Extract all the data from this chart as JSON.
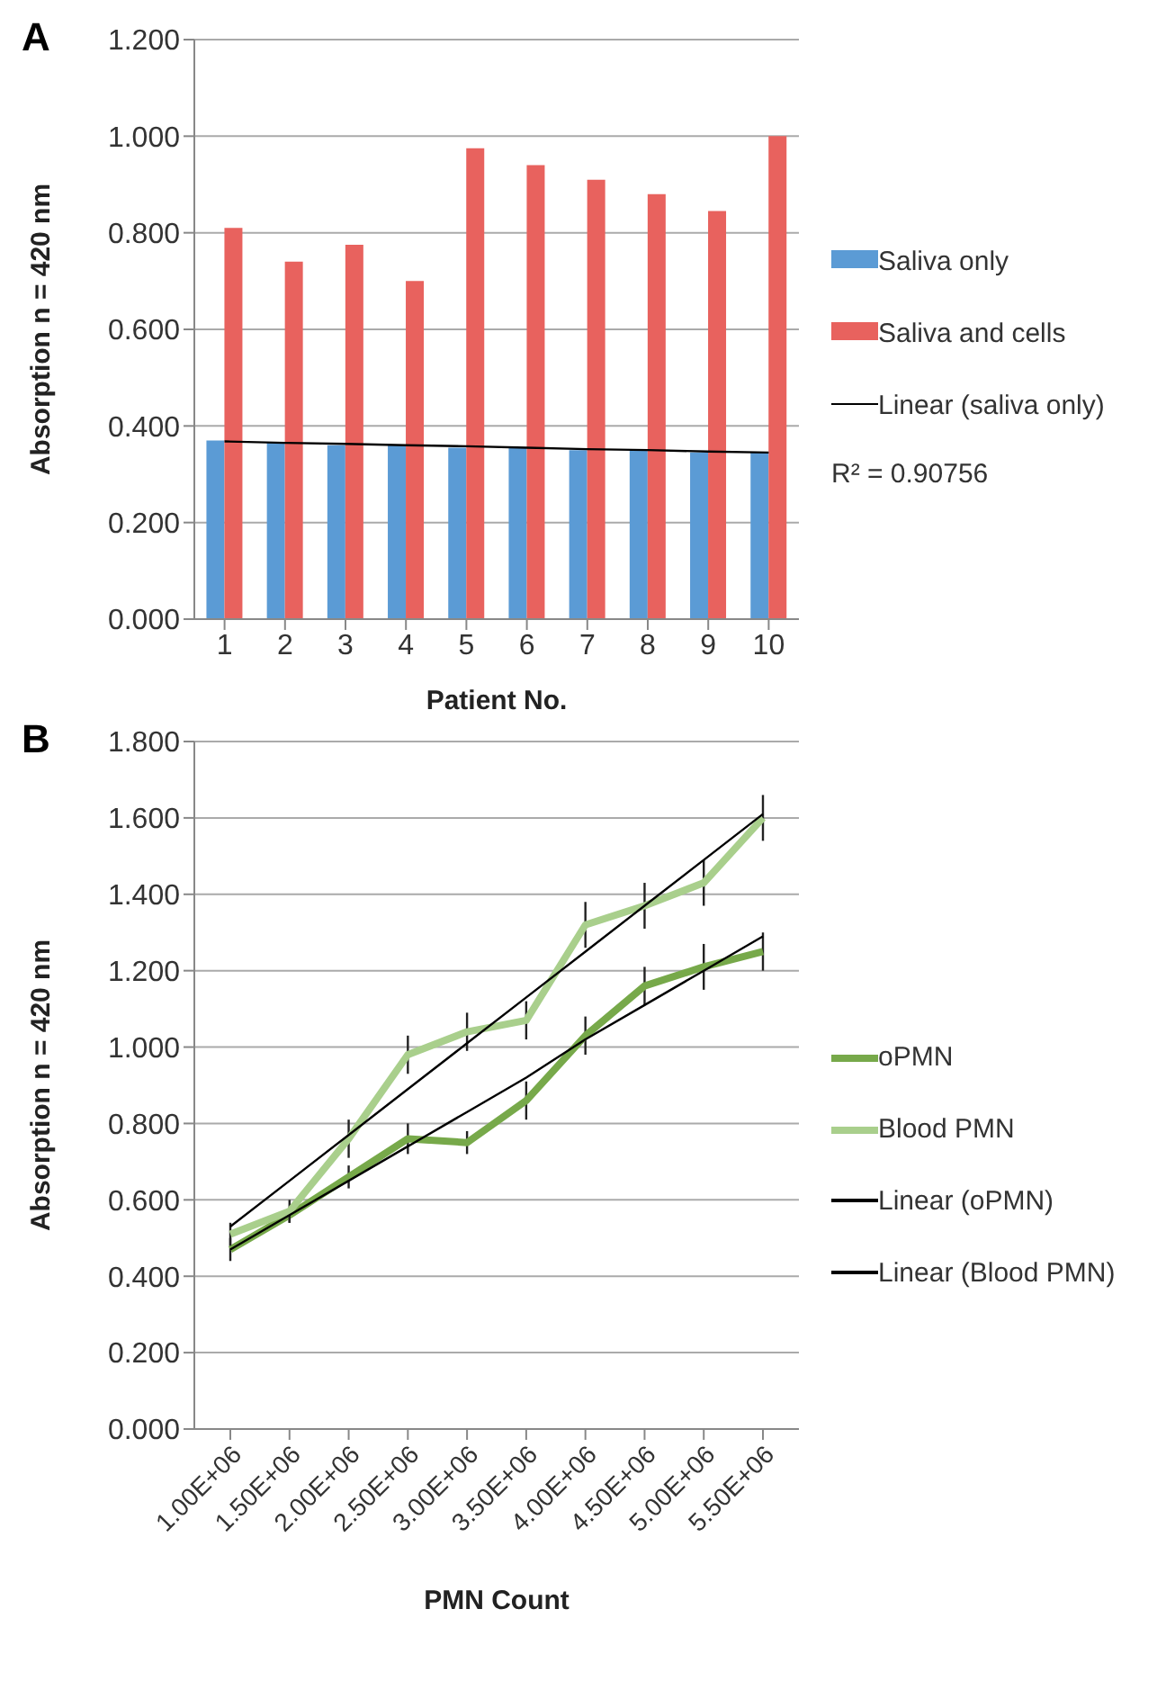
{
  "chart_data": [
    {
      "type": "bar",
      "title": "A",
      "xlabel": "Patient No.",
      "ylabel": "Absorption n = 420 nm",
      "categories": [
        "1",
        "2",
        "3",
        "4",
        "5",
        "6",
        "7",
        "8",
        "9",
        "10"
      ],
      "series": [
        {
          "name": "Saliva only",
          "color": "#5b9bd5",
          "values": [
            0.37,
            0.365,
            0.36,
            0.36,
            0.355,
            0.355,
            0.35,
            0.35,
            0.345,
            0.345
          ]
        },
        {
          "name": "Saliva and cells",
          "color": "#e8625e",
          "values": [
            0.81,
            0.74,
            0.775,
            0.7,
            0.975,
            0.94,
            0.91,
            0.88,
            0.845,
            1.0
          ]
        },
        {
          "name": "Linear (saliva only)",
          "type": "line",
          "color": "#000000",
          "values": [
            0.368,
            0.365,
            0.363,
            0.36,
            0.358,
            0.355,
            0.352,
            0.35,
            0.347,
            0.345
          ]
        }
      ],
      "ylim": [
        0,
        1.2
      ],
      "yticks": [
        {
          "value": 0,
          "label": "0.000"
        },
        {
          "value": 0.2,
          "label": "0.200"
        },
        {
          "value": 0.4,
          "label": "0.400"
        },
        {
          "value": 0.6,
          "label": "0.600"
        },
        {
          "value": 0.8,
          "label": "0.800"
        },
        {
          "value": 1,
          "label": "1.000"
        },
        {
          "value": 1.2,
          "label": "1.200"
        }
      ],
      "annotations": [
        "R² = 0.90756"
      ],
      "grid": "y",
      "legend": "right"
    },
    {
      "type": "line",
      "title": "B",
      "xlabel": "PMN Count",
      "ylabel": "Absorption n = 420 nm",
      "categories": [
        "1.00E+06",
        "1.50E+06",
        "2.00E+06",
        "2.50E+06",
        "3.00E+06",
        "3.50E+06",
        "4.00E+06",
        "4.50E+06",
        "5.00E+06",
        "5.50E+06"
      ],
      "series": [
        {
          "name": "oPMN",
          "color": "#77a94a",
          "values": [
            0.47,
            0.56,
            0.66,
            0.76,
            0.75,
            0.86,
            1.03,
            1.16,
            1.21,
            1.25
          ],
          "errors": [
            0.03,
            0.02,
            0.03,
            0.04,
            0.03,
            0.05,
            0.05,
            0.05,
            0.06,
            0.05
          ]
        },
        {
          "name": "Blood PMN",
          "color": "#a9cf8c",
          "values": [
            0.51,
            0.57,
            0.76,
            0.98,
            1.04,
            1.07,
            1.32,
            1.37,
            1.43,
            1.6
          ],
          "errors": [
            0.03,
            0.03,
            0.05,
            0.05,
            0.05,
            0.05,
            0.06,
            0.06,
            0.06,
            0.06
          ]
        },
        {
          "name": "Linear (oPMN)",
          "color": "#000000",
          "values": [
            0.47,
            0.56,
            0.65,
            0.74,
            0.83,
            0.92,
            1.02,
            1.11,
            1.2,
            1.29
          ]
        },
        {
          "name": "Linear (Blood PMN)",
          "color": "#000000",
          "values": [
            0.53,
            0.65,
            0.77,
            0.89,
            1.01,
            1.13,
            1.25,
            1.37,
            1.49,
            1.61
          ]
        }
      ],
      "ylim": [
        0,
        1.8
      ],
      "yticks": [
        {
          "value": 0,
          "label": "0.000"
        },
        {
          "value": 0.2,
          "label": "0.200"
        },
        {
          "value": 0.4,
          "label": "0.400"
        },
        {
          "value": 0.6,
          "label": "0.600"
        },
        {
          "value": 0.8,
          "label": "0.800"
        },
        {
          "value": 1,
          "label": "1.000"
        },
        {
          "value": 1.2,
          "label": "1.200"
        },
        {
          "value": 1.4,
          "label": "1.400"
        },
        {
          "value": 1.6,
          "label": "1.600"
        },
        {
          "value": 1.8,
          "label": "1.800"
        }
      ],
      "grid": "y",
      "legend": "right"
    }
  ]
}
